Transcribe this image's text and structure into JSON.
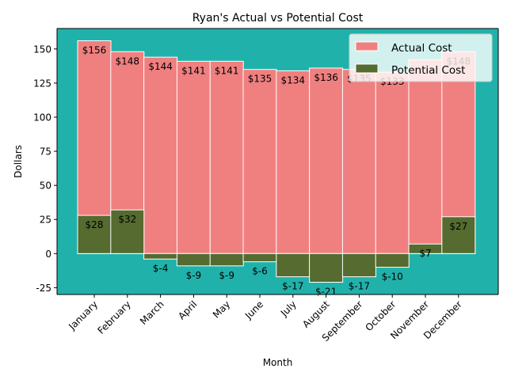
{
  "chart_data": {
    "type": "bar",
    "title": "Ryan's Actual vs Potential Cost",
    "xlabel": "Month",
    "ylabel": "Dollars",
    "categories": [
      "January",
      "February",
      "March",
      "April",
      "May",
      "June",
      "July",
      "August",
      "September",
      "October",
      "November",
      "December"
    ],
    "series": [
      {
        "name": "Actual Cost",
        "values": [
          156,
          148,
          144,
          141,
          141,
          135,
          134,
          136,
          135,
          133,
          142,
          148
        ],
        "labels": [
          "$156",
          "$148",
          "$144",
          "$141",
          "$141",
          "$135",
          "$134",
          "$136",
          "$135",
          "$133",
          "",
          "$148"
        ],
        "color": "#f08080"
      },
      {
        "name": "Potential Cost",
        "values": [
          28,
          32,
          -4,
          -9,
          -9,
          -6,
          -17,
          -21,
          -17,
          -10,
          7,
          27
        ],
        "labels": [
          "$28",
          "$32",
          "$-4",
          "$-9",
          "$-9",
          "$-6",
          "$-17",
          "$-21",
          "$-17",
          "$-10",
          "$7",
          "$27"
        ],
        "color": "#556b2f"
      }
    ],
    "ylim": [
      -30,
      165
    ],
    "yticks": [
      -25,
      0,
      25,
      50,
      75,
      100,
      125,
      150
    ],
    "background_color": "#20b2aa",
    "bar_edge_color": "#ffffff",
    "legend": "top-right",
    "grid": false
  }
}
